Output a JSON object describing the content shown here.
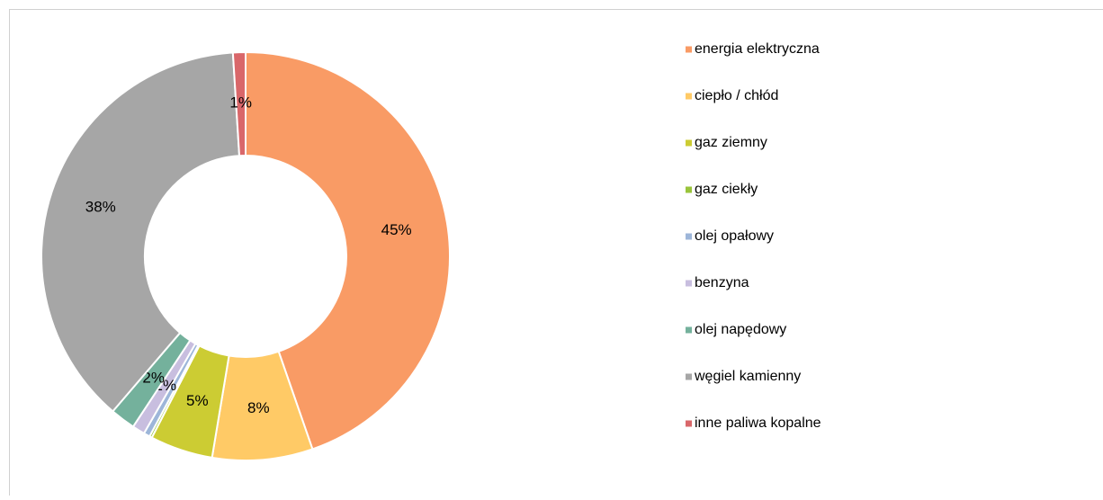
{
  "chart_data": {
    "type": "donut",
    "categories": [
      "energia elektryczna",
      "ciepło / chłód",
      "gaz ziemny",
      "gaz ciekły",
      "olej opałowy",
      "benzyna",
      "olej napędowy",
      "węgiel kamienny",
      "inne paliwa kopalne"
    ],
    "values": [
      45,
      8,
      5,
      0.2,
      0.5,
      1,
      2,
      38,
      1
    ],
    "value_labels": [
      "45%",
      "8%",
      "5%",
      null,
      null,
      "1%",
      "2%",
      "38%",
      "1%"
    ],
    "colors": [
      "#f99b65",
      "#ffca66",
      "#cccc33",
      "#99c43b",
      "#9db6d9",
      "#c8bedf",
      "#74b19c",
      "#a6a6a6",
      "#d9676a"
    ],
    "legend": "right"
  }
}
